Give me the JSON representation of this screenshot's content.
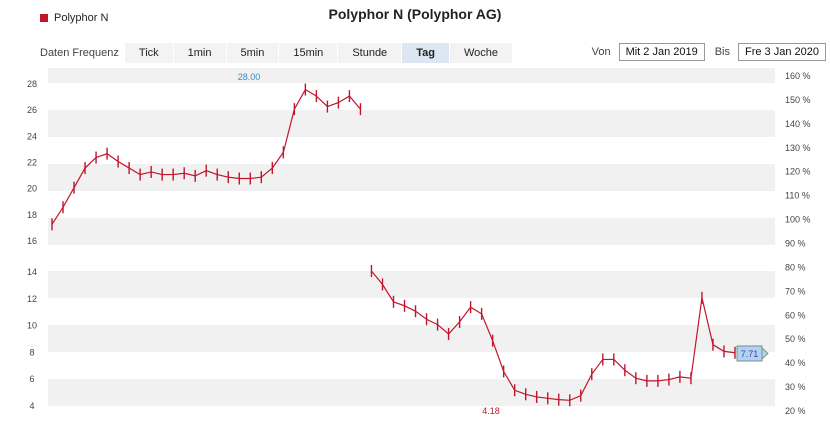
{
  "legend": {
    "label": "Polyphor N",
    "color": "#c0162c"
  },
  "title": "Polyphor N (Polyphor AG)",
  "toolbar": {
    "label": "Daten Frequenz",
    "buttons": [
      "Tick",
      "1min",
      "5min",
      "15min",
      "Stunde",
      "Tag",
      "Woche"
    ],
    "active": "Tag"
  },
  "range": {
    "from_label": "Von",
    "from_value": "Mit 2 Jan 2019",
    "to_label": "Bis",
    "to_value": "Fre 3 Jan 2020"
  },
  "chart_data": {
    "type": "line",
    "title": "Polyphor N (Polyphor AG)",
    "series": [
      {
        "name": "Polyphor N",
        "x": [
          0,
          4,
          8,
          12,
          16,
          20,
          24,
          28,
          32,
          36,
          40,
          44,
          48,
          52,
          56,
          60,
          64,
          68,
          72,
          76,
          80,
          84,
          88,
          92,
          96,
          100,
          104,
          108,
          112,
          116,
          120,
          124,
          128,
          132,
          136,
          140,
          144,
          148,
          152,
          156,
          160,
          164,
          168,
          172,
          176,
          180,
          184,
          188,
          192,
          196,
          200,
          204,
          208,
          212,
          216,
          220,
          224,
          228,
          232,
          236,
          240,
          244,
          248
        ],
        "values": [
          17.2,
          18.5,
          20.0,
          21.5,
          22.3,
          22.6,
          22.0,
          21.5,
          21.0,
          21.2,
          21.0,
          21.0,
          21.1,
          20.9,
          21.3,
          21.0,
          20.8,
          20.7,
          20.7,
          20.8,
          21.5,
          22.7,
          26.0,
          27.5,
          27.0,
          26.2,
          26.5,
          27.0,
          26.0,
          14.0,
          13.0,
          11.7,
          11.4,
          11.0,
          10.4,
          10.0,
          9.3,
          10.2,
          11.3,
          10.8,
          8.8,
          6.5,
          5.1,
          4.8,
          4.6,
          4.5,
          4.4,
          4.35,
          4.7,
          6.3,
          7.4,
          7.4,
          6.6,
          6.0,
          5.8,
          5.8,
          5.9,
          6.1,
          6.0,
          12.0,
          8.5,
          8.0,
          7.9
        ],
        "last_value": "7.71",
        "annotations": [
          {
            "label": "28.00",
            "value": 28.0,
            "color": "#2a8fc7"
          },
          {
            "label": "4.18",
            "value": 4.18,
            "color": "#c0162c"
          }
        ]
      }
    ],
    "yleft_ticks": [
      "4",
      "6",
      "8",
      "10",
      "12",
      "14",
      "16",
      "18",
      "20",
      "22",
      "24",
      "26",
      "28"
    ],
    "yright_ticks": [
      "20 %",
      "30 %",
      "40 %",
      "50 %",
      "60 %",
      "70 %",
      "80 %",
      "90 %",
      "100 %",
      "110 %",
      "120 %",
      "130 %",
      "140 %",
      "150 %",
      "160 %"
    ],
    "ylim": [
      3.5,
      28.5
    ],
    "grid": true,
    "legend_position": "top-left"
  }
}
